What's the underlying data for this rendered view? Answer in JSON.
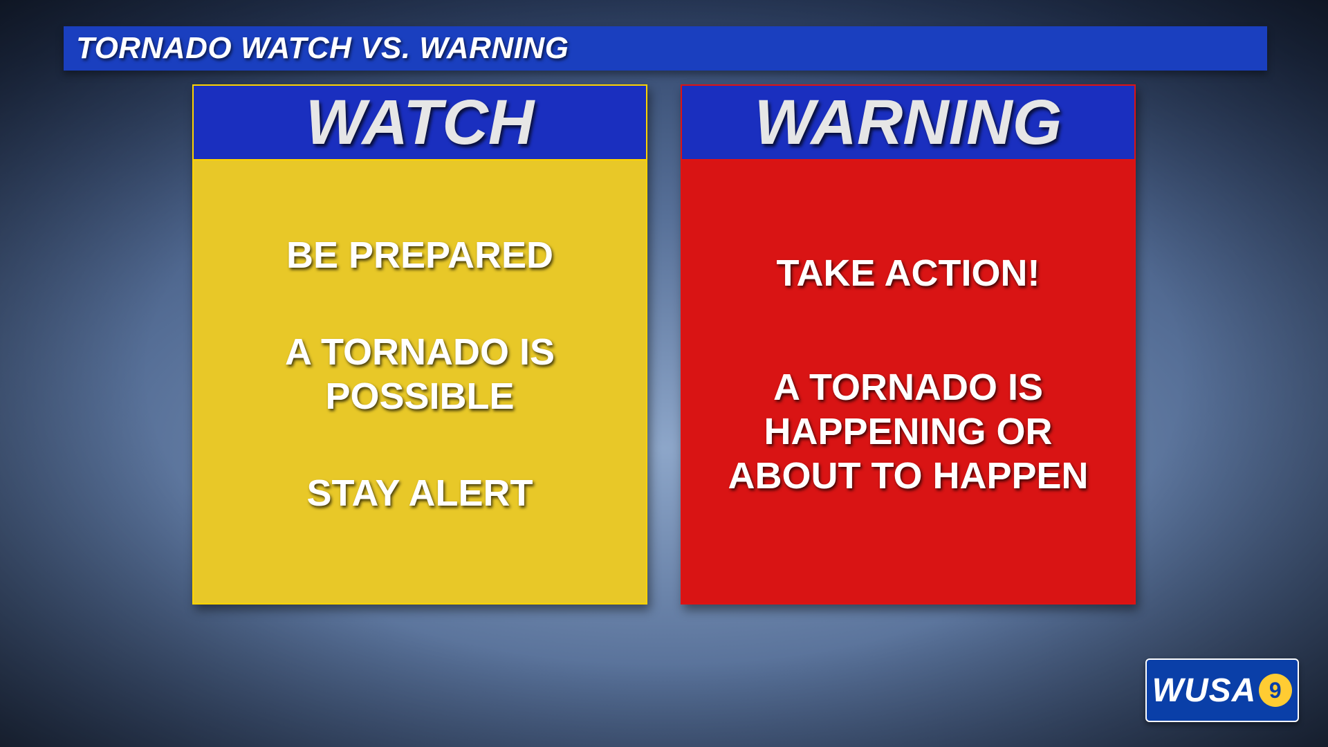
{
  "title": "TORNADO WATCH VS. WARNING",
  "title_bar_color": "#1a3fbf",
  "cards": {
    "watch": {
      "head_label": "WATCH",
      "head_bg": "#1a2fbf",
      "head_text_color": "#e6e6e6",
      "head_border": "#ffd400",
      "body_bg": "#e8c828",
      "body_border": "#ffd400",
      "lines": [
        "BE PREPARED",
        "A TORNADO IS POSSIBLE",
        "STAY ALERT"
      ]
    },
    "warning": {
      "head_label": "WARNING",
      "head_bg": "#1a2fbf",
      "head_text_color": "#e6e6e6",
      "head_border": "#e01313",
      "body_bg": "#d91414",
      "body_border": "#e01313",
      "lines": [
        "TAKE ACTION!",
        "A TORNADO IS HAPPENING OR ABOUT TO HAPPEN"
      ]
    }
  },
  "logo": {
    "text": "WUSA",
    "digit": "9",
    "bg": "#0a3fa8",
    "accent": "#ffcc33"
  }
}
